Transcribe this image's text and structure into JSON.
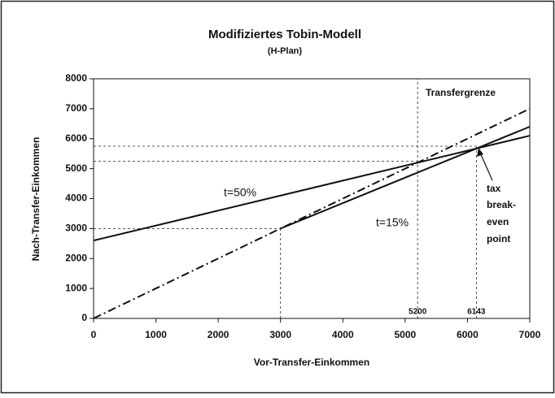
{
  "chart_data": {
    "type": "line",
    "title": "Modifiziertes Tobin-Modell",
    "subtitle": "(H-Plan)",
    "x_label": "Vor-Transfer-Einkommen",
    "y_label": "Nach-Transfer-Einkommen",
    "xlim": [
      0,
      7000
    ],
    "ylim": [
      0,
      8000
    ],
    "xticks": [
      0,
      1000,
      2000,
      3000,
      4000,
      5000,
      6000,
      7000
    ],
    "yticks": [
      0,
      1000,
      2000,
      3000,
      4000,
      5000,
      6000,
      7000,
      8000
    ],
    "series": [
      {
        "color": "#111111",
        "style": "dashdot",
        "x": [
          0,
          7000
        ],
        "values": [
          0,
          7000
        ]
      },
      {
        "name": "t=50%",
        "color": "#111111",
        "style": "solid",
        "x": [
          0,
          7000
        ],
        "values": [
          2600,
          6100
        ]
      },
      {
        "name": "t=15%",
        "color": "#111111",
        "style": "solid",
        "x": [
          3000,
          7000
        ],
        "values": [
          3000,
          6400
        ]
      }
    ],
    "guides": [
      {
        "x": [
          0,
          3000
        ],
        "y": [
          3000,
          3000
        ]
      },
      {
        "x": [
          3000,
          3000
        ],
        "y": [
          0,
          3000
        ]
      },
      {
        "x": [
          0,
          5200
        ],
        "y": [
          5250,
          5250
        ]
      },
      {
        "x": [
          0,
          6143
        ],
        "y": [
          5750,
          5750
        ]
      },
      {
        "x": [
          5200,
          5200
        ],
        "y": [
          0,
          8000
        ]
      },
      {
        "x": [
          6143,
          6143
        ],
        "y": [
          0,
          5750
        ]
      }
    ],
    "marked_x": [
      5200,
      6143
    ],
    "annotations": [
      "Transfergrenze",
      "tax",
      "break-",
      "even",
      "point"
    ]
  }
}
